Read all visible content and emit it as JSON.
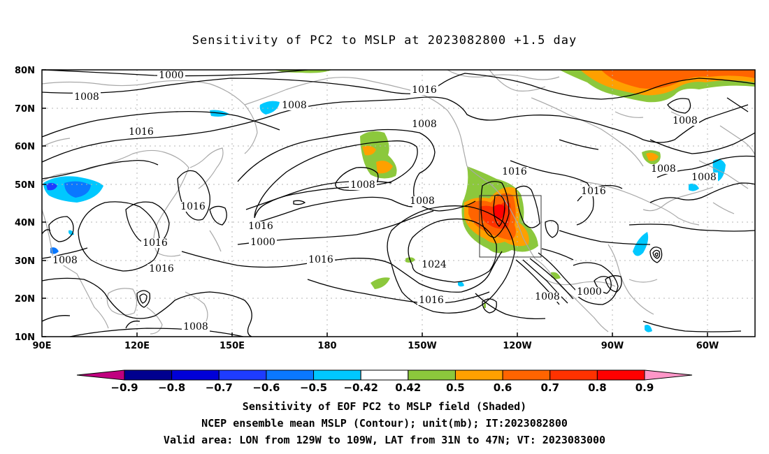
{
  "title": "Sensitivity of PC2 to MSLP at 2023082800 +1.5 day",
  "axes": {
    "lat_labels": [
      "80N",
      "70N",
      "60N",
      "50N",
      "40N",
      "30N",
      "20N",
      "10N"
    ],
    "lon_labels": [
      "90E",
      "120E",
      "150E",
      "180",
      "150W",
      "120W",
      "90W",
      "60W"
    ],
    "lon_range_deg": [
      90,
      315
    ],
    "lat_range_deg": [
      10,
      80
    ],
    "grid": "dotted"
  },
  "contour_labels": [
    "1000",
    "1008",
    "1008",
    "1016",
    "1016",
    "1008",
    "1008",
    "1016",
    "1016",
    "1000",
    "1016",
    "1008",
    "1016",
    "1008",
    "1024",
    "1016",
    "1016",
    "1008",
    "1008",
    "1000",
    "1008",
    "1016",
    "1016",
    "1008",
    "1008"
  ],
  "colorbar": {
    "tick_labels": [
      "−0.9",
      "−0.8",
      "−0.7",
      "−0.6",
      "−0.5",
      "−0.42",
      "0.42",
      "0.5",
      "0.6",
      "0.7",
      "0.8",
      "0.9"
    ],
    "colors": [
      "#c0007f",
      "#00008f",
      "#0000d8",
      "#1e3cff",
      "#0a78ff",
      "#00c8ff",
      "#ffffff",
      "#8cc83c",
      "#ffa000",
      "#ff6400",
      "#ff3200",
      "#ff0000",
      "#ff96c8"
    ]
  },
  "valid_box": {
    "lon_from": "129W",
    "lon_to": "109W",
    "lat_from": "31N",
    "lat_to": "47N"
  },
  "captions": {
    "line1": "Sensitivity of EOF PC2 to MSLP field (Shaded)",
    "line2": "NCEP ensemble mean MSLP (Contour); unit(mb); IT:2023082800",
    "line3": "Valid area: LON from 129W to 109W, LAT from 31N to 47N; VT: 2023083000"
  }
}
